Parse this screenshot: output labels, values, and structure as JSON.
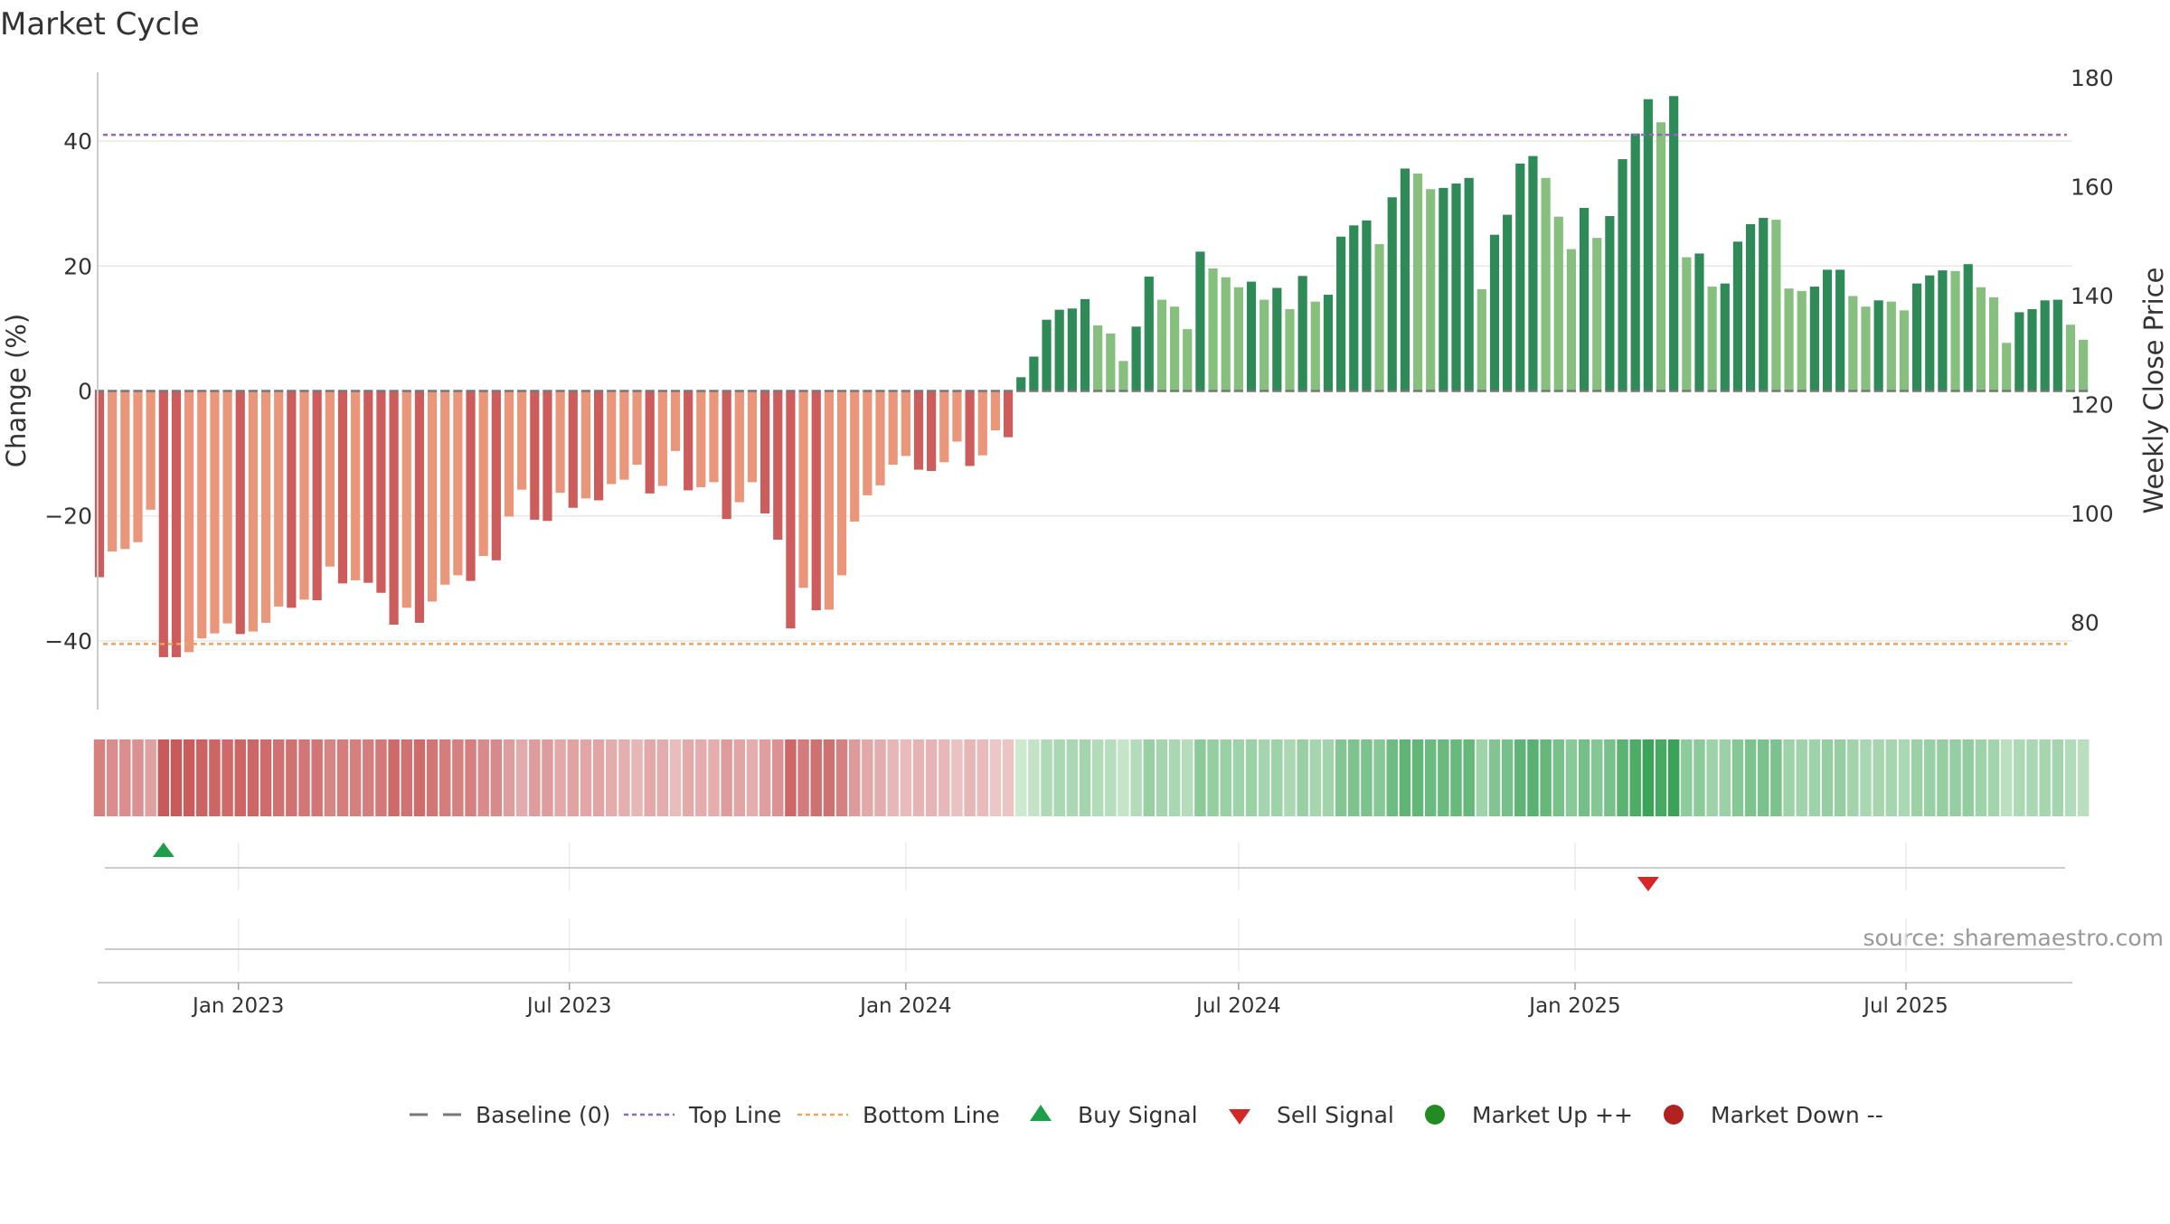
{
  "chart_data": {
    "type": "bar",
    "title": "Market Cycle",
    "ylabel": "Change (%)",
    "y2label": "Weekly Close Price",
    "ylim": [
      -51,
      51
    ],
    "y2lim": [
      64,
      181
    ],
    "yticks": [
      40,
      20,
      0,
      -20,
      -40
    ],
    "y2ticks": [
      180,
      160,
      140,
      120,
      100,
      80
    ],
    "ytick_labels": [
      "40",
      "20",
      "0",
      "−20",
      "−40"
    ],
    "y2tick_labels": [
      "180",
      "160",
      "140",
      "120",
      "100",
      "80"
    ],
    "top_line": 41,
    "bottom_line": -40.5,
    "x_start": "2022-10-16",
    "x_end": "2025-09-30",
    "xticks": [
      {
        "date": "2023-01-01",
        "label": "Jan 2023"
      },
      {
        "date": "2023-07-01",
        "label": "Jul 2023"
      },
      {
        "date": "2024-01-01",
        "label": "Jan 2024"
      },
      {
        "date": "2024-07-01",
        "label": "Jul 2024"
      },
      {
        "date": "2025-01-01",
        "label": "Jan 2025"
      },
      {
        "date": "2025-07-01",
        "label": "Jul 2025"
      }
    ],
    "first_week": "2022-10-17",
    "weekly_change": [
      -29.8,
      -25.7,
      -25.3,
      -24.2,
      -19.0,
      -42.6,
      -42.6,
      -41.8,
      -39.6,
      -38.8,
      -37.2,
      -38.9,
      -38.5,
      -37.1,
      -34.5,
      -34.7,
      -33.4,
      -33.5,
      -28.1,
      -30.8,
      -30.3,
      -30.7,
      -32.3,
      -37.4,
      -34.7,
      -37.1,
      -33.7,
      -31.0,
      -29.5,
      -30.4,
      -26.4,
      -27.1,
      -20.1,
      -15.8,
      -20.6,
      -20.8,
      -16.3,
      -18.7,
      -17.2,
      -17.5,
      -14.9,
      -14.2,
      -11.8,
      -16.4,
      -15.2,
      -9.6,
      -15.9,
      -15.4,
      -14.6,
      -20.5,
      -17.8,
      -14.6,
      -19.6,
      -23.8,
      -38.0,
      -31.5,
      -35.1,
      -35.0,
      -29.5,
      -20.9,
      -16.7,
      -15.1,
      -11.8,
      -10.4,
      -12.6,
      -12.8,
      -11.4,
      -8.1,
      -12.0,
      -10.3,
      -6.3,
      -7.4,
      2.2,
      5.5,
      11.4,
      13.0,
      13.2,
      14.7,
      10.5,
      9.2,
      4.8,
      10.3,
      18.3,
      14.6,
      13.5,
      9.9,
      22.3,
      19.6,
      18.2,
      16.6,
      17.5,
      14.6,
      16.5,
      13.1,
      18.4,
      14.3,
      15.4,
      24.7,
      26.5,
      27.3,
      23.5,
      31.0,
      35.6,
      34.8,
      32.3,
      32.5,
      33.2,
      34.1,
      16.3,
      25.0,
      28.2,
      36.4,
      37.6,
      34.1,
      27.9,
      22.7,
      29.3,
      24.5,
      28.0,
      37.1,
      41.2,
      46.7,
      43.0,
      47.2,
      21.4,
      22.0,
      16.7,
      17.2,
      23.9,
      26.7,
      27.7,
      27.4,
      16.4,
      16.0,
      16.7,
      19.4,
      19.4,
      15.2,
      13.5,
      14.5,
      14.3,
      12.9,
      17.2,
      18.5,
      19.3,
      19.2,
      20.3,
      16.6,
      15.0,
      7.7,
      12.6,
      13.1,
      14.5,
      14.6,
      10.6,
      8.2
    ],
    "buy_signals": [
      5
    ],
    "sell_signals": [
      121
    ],
    "legend": [
      {
        "key": "baseline",
        "label": "Baseline (0)"
      },
      {
        "key": "top",
        "label": "Top Line"
      },
      {
        "key": "bottom",
        "label": "Bottom Line"
      },
      {
        "key": "buy",
        "label": "Buy Signal"
      },
      {
        "key": "sell",
        "label": "Sell Signal"
      },
      {
        "key": "up",
        "label": "Market Up ++"
      },
      {
        "key": "down",
        "label": "Market Down --"
      }
    ],
    "legend_position": "bottom-center",
    "source": "source: sharemaestro.com"
  },
  "colors": {
    "pos_dark": "#2e8b57",
    "pos_light": "#86bf7e",
    "neg_dark": "#cd5c5c",
    "neg_light": "#e9967a",
    "top_line": "#9467bd",
    "bottom_line": "#f0a35e",
    "baseline": "#777777",
    "buy": "#1f9e4a",
    "sell": "#d62728",
    "up_dot": "#228b22",
    "down_dot": "#b22222",
    "axis": "#cccccc",
    "grid": "#e8e8e8",
    "text": "#333333"
  }
}
